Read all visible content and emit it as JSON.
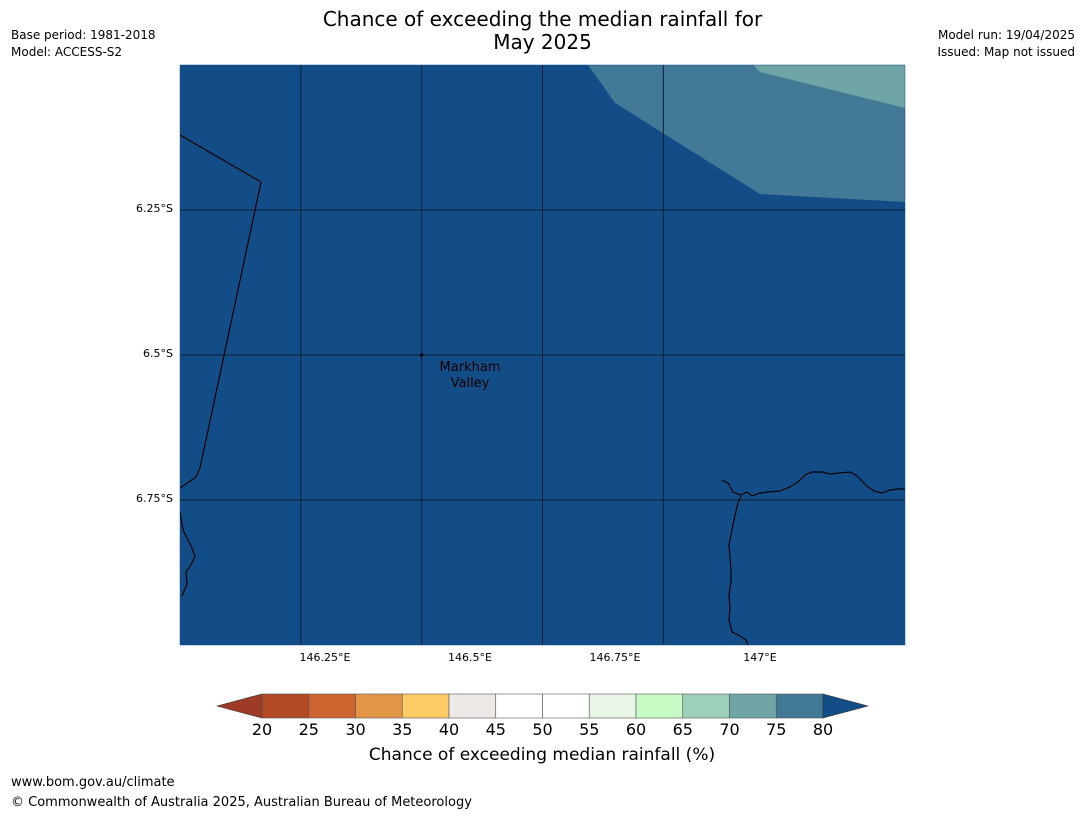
{
  "title_line1": "Chance of exceeding the median rainfall for",
  "title_line2": "May 2025",
  "meta_left": [
    "Base period: 1981-2018",
    "Model: ACCESS-S2"
  ],
  "meta_right": [
    "Model run: 19/04/2025",
    "Issued: Map not issued"
  ],
  "map": {
    "extent": {
      "lon_min": 146.0,
      "lon_max": 147.5,
      "lat_top": -6.0,
      "lat_bottom": -7.0
    },
    "lat_labels": [
      "6.25°S",
      "6.5°S",
      "6.75°S"
    ],
    "lat_values": [
      -6.25,
      -6.5,
      -6.75
    ],
    "lon_labels": [
      "146.25°E",
      "146.5°E",
      "146.75°E",
      "147°E"
    ],
    "lon_values": [
      146.25,
      146.5,
      146.75,
      147.0
    ],
    "place": {
      "line1": "Markham",
      "line2": "Valley",
      "lon": 146.5,
      "lat": -6.5
    },
    "background_color": "#134d88",
    "grid_color": "#0d1f33",
    "coast_color": "#000000"
  },
  "legend": {
    "title": "Chance of exceeding median rainfall (%)",
    "ticks": [
      "20",
      "25",
      "30",
      "35",
      "40",
      "45",
      "50",
      "55",
      "60",
      "65",
      "70",
      "75",
      "80"
    ],
    "under_color": "#9e3a25",
    "over_color": "#134d88",
    "colors": [
      "#b34a26",
      "#cf6330",
      "#e29545",
      "#fecb65",
      "#ede9e6",
      "#ffffff",
      "#ffffff",
      "#eaf7e8",
      "#c6fbc6",
      "#9dcfb9",
      "#6fa5a5",
      "#417996"
    ]
  },
  "footer": {
    "url": "www.bom.gov.au/climate",
    "copyright": "© Commonwealth of Australia 2025, Australian Bureau of Meteorology"
  }
}
